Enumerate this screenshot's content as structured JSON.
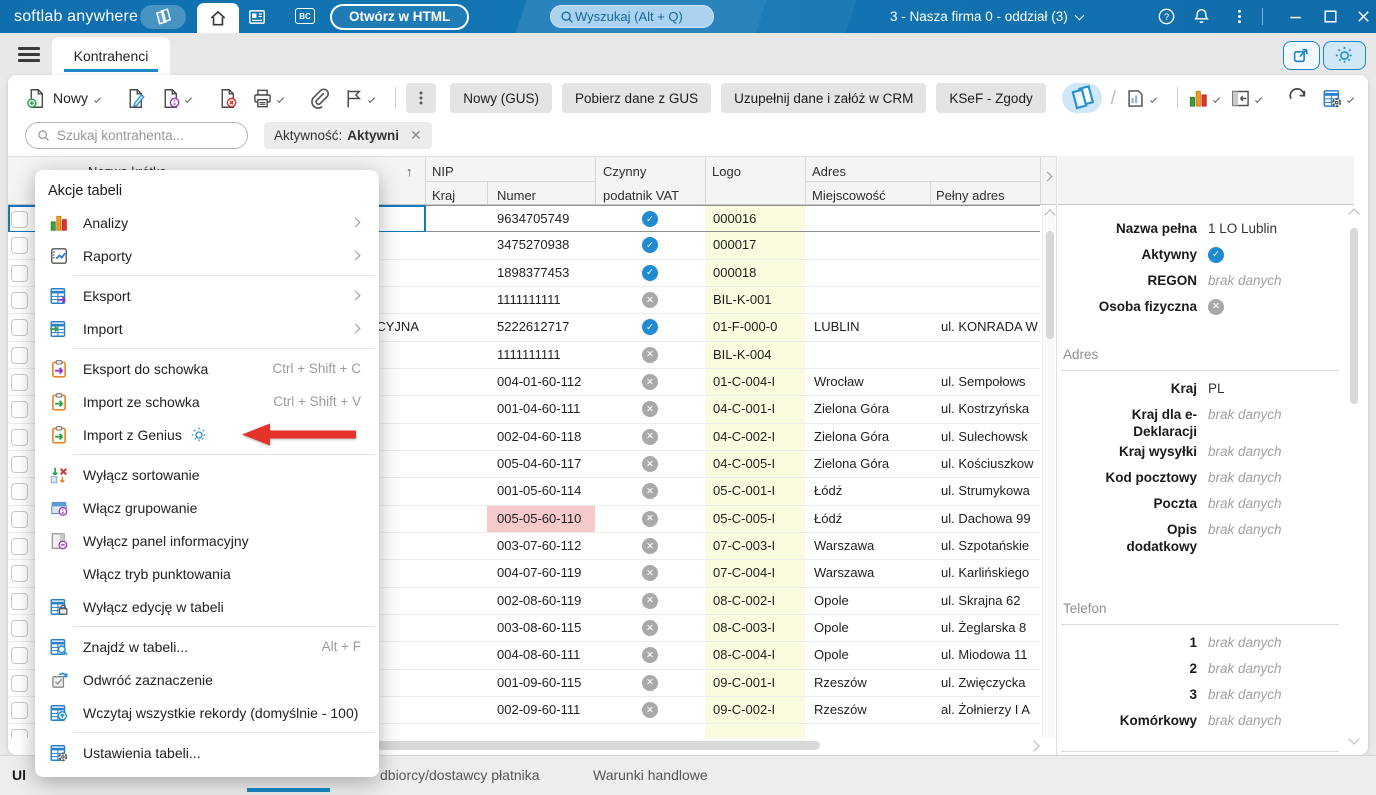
{
  "topbar": {
    "brand": "softlab anywhere",
    "bc_badge": "BC",
    "open_html_label": "Otwórz w HTML",
    "search_placeholder": "Wyszukaj (Alt + Q)",
    "company_selector": "3 - Nasza firma 0 - oddział (3)"
  },
  "tabbar": {
    "active_tab": "Kontrahenci"
  },
  "toolbar": {
    "new_label": "Nowy",
    "buttons": [
      "Nowy (GUS)",
      "Pobierz dane z GUS",
      "Uzupełnij dane i załóż w CRM",
      "KSeF - Zgody"
    ],
    "left_icons": [
      "document-new",
      "edit-pencil",
      "document-info",
      "document-delete",
      "printer",
      "paperclip",
      "flag"
    ],
    "right_icons": [
      "pages",
      "document-report",
      "bar-chart",
      "panel-collapse",
      "refresh",
      "table-settings"
    ]
  },
  "filter": {
    "search_placeholder": "Szukaj kontrahenta...",
    "chip_label": "Aktywność:",
    "chip_value": "Aktywni"
  },
  "table": {
    "sort_indicator": "↑",
    "headers": {
      "name": "Nazwa krótka",
      "nip": "NIP",
      "country": "Kraj",
      "number": "Numer",
      "vat_line1": "Czynny",
      "vat_line2": "podatnik VAT",
      "logo": "Logo",
      "address": "Adres",
      "city": "Miejscowość",
      "full_address": "Pełny adres"
    },
    "rows": [
      {
        "name_fragment": "",
        "nip": "9634705749",
        "vat": true,
        "logo": "000016",
        "city": "",
        "address": "",
        "selected": true
      },
      {
        "name_fragment": "",
        "nip": "3475270938",
        "vat": true,
        "logo": "000017",
        "city": "",
        "address": ""
      },
      {
        "name_fragment": "",
        "nip": "1898377453",
        "vat": true,
        "logo": "000018",
        "city": "",
        "address": ""
      },
      {
        "name_fragment": "",
        "nip": "1111111111",
        "vat": false,
        "logo": "BIL-K-001",
        "city": "",
        "address": ""
      },
      {
        "name_fragment": "CYJNA",
        "nip": "5222612717",
        "vat": true,
        "logo": "01-F-000-0",
        "city": "LUBLIN",
        "address": "ul. KONRADA W"
      },
      {
        "name_fragment": "",
        "nip": "1111111111",
        "vat": false,
        "logo": "BIL-K-004",
        "city": "",
        "address": ""
      },
      {
        "name_fragment": "",
        "nip": "004-01-60-112",
        "vat": false,
        "logo": "01-C-004-I",
        "city": "Wrocław",
        "address": "ul. Sempołows"
      },
      {
        "name_fragment": "",
        "nip": "001-04-60-111",
        "vat": false,
        "logo": "04-C-001-I",
        "city": "Zielona Góra",
        "address": "ul. Kostrzyńska"
      },
      {
        "name_fragment": "",
        "nip": "002-04-60-118",
        "vat": false,
        "logo": "04-C-002-I",
        "city": "Zielona Góra",
        "address": "ul. Sulechowsk"
      },
      {
        "name_fragment": "",
        "nip": "005-04-60-117",
        "vat": false,
        "logo": "04-C-005-I",
        "city": "Zielona Góra",
        "address": "ul. Kościuszkow"
      },
      {
        "name_fragment": "",
        "nip": "001-05-60-114",
        "vat": false,
        "logo": "05-C-001-I",
        "city": "Łódź",
        "address": "ul. Strumykowa"
      },
      {
        "name_fragment": "",
        "nip": "005-05-60-110",
        "nip_alert": true,
        "vat": false,
        "logo": "05-C-005-I",
        "city": "Łódź",
        "address": "ul. Dachowa 99"
      },
      {
        "name_fragment": "",
        "nip": "003-07-60-112",
        "vat": false,
        "logo": "07-C-003-I",
        "city": "Warszawa",
        "address": "ul. Szpotańskie"
      },
      {
        "name_fragment": "",
        "nip": "004-07-60-119",
        "vat": false,
        "logo": "07-C-004-I",
        "city": "Warszawa",
        "address": "ul. Karlińskiego"
      },
      {
        "name_fragment": "",
        "nip": "002-08-60-119",
        "vat": false,
        "logo": "08-C-002-I",
        "city": "Opole",
        "address": "ul. Skrajna 62"
      },
      {
        "name_fragment": "",
        "nip": "003-08-60-115",
        "vat": false,
        "logo": "08-C-003-I",
        "city": "Opole",
        "address": "ul. Żeglarska 8"
      },
      {
        "name_fragment": "",
        "nip": "004-08-60-111",
        "vat": false,
        "logo": "08-C-004-I",
        "city": "Opole",
        "address": "ul. Miodowa 11"
      },
      {
        "name_fragment": "",
        "nip": "001-09-60-115",
        "vat": false,
        "logo": "09-C-001-I",
        "city": "Rzeszów",
        "address": "ul. Zwięczycka"
      },
      {
        "name_fragment": "",
        "nip": "002-09-60-111",
        "vat": false,
        "logo": "09-C-002-I",
        "city": "Rzeszów",
        "address": "al. Żołnierzy I A"
      },
      {
        "partial": true,
        "logo": ""
      }
    ]
  },
  "context_menu": {
    "title": "Akcje tabeli",
    "items": [
      {
        "icon": "analysis-chart",
        "label": "Analizy",
        "submenu": true
      },
      {
        "icon": "report-document",
        "label": "Raporty",
        "submenu": true
      },
      {
        "separator": true
      },
      {
        "icon": "table-export",
        "label": "Eksport",
        "submenu": true
      },
      {
        "icon": "table-import",
        "label": "Import",
        "submenu": true
      },
      {
        "separator": true
      },
      {
        "icon": "clipboard-export",
        "label": "Eksport do schowka",
        "shortcut": "Ctrl + Shift + C"
      },
      {
        "icon": "clipboard-import",
        "label": "Import ze schowka",
        "shortcut": "Ctrl + Shift + V"
      },
      {
        "icon": "clipboard-import",
        "label": "Import z Genius",
        "genius": true,
        "highlighted_by_arrow": true
      },
      {
        "separator": true
      },
      {
        "icon": "sort-off",
        "label": "Wyłącz sortowanie"
      },
      {
        "icon": "grouping-on",
        "label": "Włącz grupowanie"
      },
      {
        "icon": "info-panel-off",
        "label": "Wyłącz panel informacyjny"
      },
      {
        "icon": "",
        "label": "Włącz tryb punktowania"
      },
      {
        "icon": "table-lock",
        "label": "Wyłącz edycję w tabeli"
      },
      {
        "separator": true
      },
      {
        "icon": "table-search",
        "label": "Znajdź w tabeli...",
        "shortcut": "Alt + F"
      },
      {
        "icon": "invert-selection",
        "label": "Odwróć zaznaczenie"
      },
      {
        "icon": "table-load-all",
        "label": "Wczytaj wszystkie rekordy (domyślnie - 100)"
      },
      {
        "separator": true
      },
      {
        "icon": "table-settings",
        "label": "Ustawienia tabeli..."
      }
    ]
  },
  "detail_panel": {
    "empty_text": "brak danych",
    "fields": [
      {
        "label": "Nazwa pełna",
        "type": "text",
        "value": "1 LO Lublin"
      },
      {
        "label": "Aktywny",
        "type": "check"
      },
      {
        "label": "REGON",
        "type": "empty"
      },
      {
        "label": "Osoba fizyczna",
        "type": "cross"
      },
      {
        "section": "Adres"
      },
      {
        "label": "Kraj",
        "type": "text",
        "value": "PL"
      },
      {
        "label": "Kraj dla e-Deklaracji",
        "type": "empty"
      },
      {
        "label": "Kraj wysyłki",
        "type": "empty"
      },
      {
        "label": "Kod pocztowy",
        "type": "empty"
      },
      {
        "label": "Poczta",
        "type": "empty"
      },
      {
        "label": "Opis dodatkowy",
        "type": "empty"
      },
      {
        "section": "Telefon",
        "big_gap": true
      },
      {
        "label": "1",
        "type": "empty"
      },
      {
        "label": "2",
        "type": "empty"
      },
      {
        "label": "3",
        "type": "empty"
      },
      {
        "label": "Komórkowy",
        "type": "empty"
      }
    ]
  },
  "bottom_tabs": {
    "left_fragment": "Ul",
    "tabs": [
      "dbiorcy/dostawcy płatnika",
      "Warunki handlowe"
    ]
  },
  "colors": {
    "topbar_blue": "#1376b5",
    "accent": "#1b87c6",
    "check_blue": "#1e8bd2",
    "cross_gray": "#a9a9a9",
    "logo_cell_yellow": "#fbfbdf",
    "alert_cell_pink": "#f5caca",
    "button_gray": "#e4e4e4",
    "red_arrow": "#e5322b"
  }
}
